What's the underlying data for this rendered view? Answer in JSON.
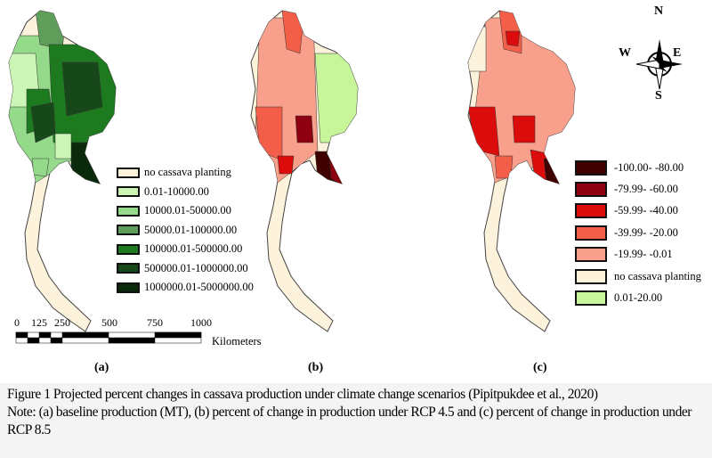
{
  "colors": {
    "no_planting": "#fdf3dc",
    "green_1": "#ccf5b8",
    "green_2": "#95d98a",
    "green_3": "#5e9e5a",
    "green_4": "#1e7a1e",
    "green_5": "#17481a",
    "green_6": "#0b2a0c",
    "red_1": "#3f0000",
    "red_2": "#8e0010",
    "red_3": "#dc0c0c",
    "red_4": "#f25e48",
    "red_5": "#f9a08c",
    "pos_green": "#c6f59a"
  },
  "legend_a": [
    {
      "label": "no cassava planting",
      "color_key": "no_planting"
    },
    {
      "label": "0.01-10000.00",
      "color_key": "green_1"
    },
    {
      "label": "10000.01-50000.00",
      "color_key": "green_2"
    },
    {
      "label": "50000.01-100000.00",
      "color_key": "green_3"
    },
    {
      "label": "100000.01-500000.00",
      "color_key": "green_4"
    },
    {
      "label": "500000.01-1000000.00",
      "color_key": "green_5"
    },
    {
      "label": "1000000.01-5000000.00",
      "color_key": "green_6"
    }
  ],
  "legend_c": [
    {
      "label": "-100.00- -80.00",
      "color_key": "red_1"
    },
    {
      "label": "-79.99- -60.00",
      "color_key": "red_2"
    },
    {
      "label": "-59.99- -40.00",
      "color_key": "red_3"
    },
    {
      "label": "-39.99- -20.00",
      "color_key": "red_4"
    },
    {
      "label": "-19.99- -0.01",
      "color_key": "red_5"
    },
    {
      "label": "no cassava planting",
      "color_key": "no_planting"
    },
    {
      "label": "0.01-20.00",
      "color_key": "pos_green"
    }
  ],
  "scale_bar": {
    "ticks": [
      "0",
      "125",
      "250",
      "500",
      "750",
      "1000"
    ],
    "unit": "Kilometers"
  },
  "compass": {
    "n": "N",
    "s": "S",
    "e": "E",
    "w": "W"
  },
  "panels": {
    "a": "(a)",
    "b": "(b)",
    "c": "(c)"
  },
  "caption": {
    "line1": "Figure 1 Projected percent changes in cassava production under climate change scenarios (Pipitpukdee et al., 2020)",
    "note": "Note: (a) baseline production (MT), (b) percent of change in production under RCP 4.5 and (c) percent of change in production under RCP 8.5"
  }
}
